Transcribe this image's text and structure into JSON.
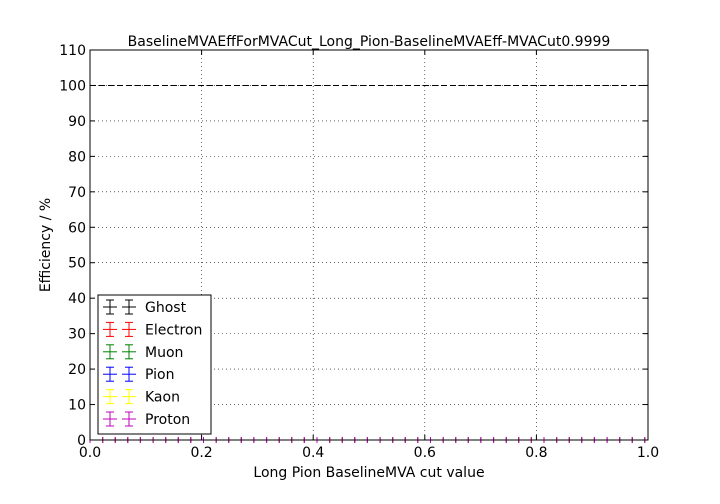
{
  "chart_data": {
    "type": "scatter",
    "title": "BaselineMVAEffForMVACut_Long_Pion-BaselineMVAEff-MVACut0.9999",
    "xlabel": "Long Pion BaselineMVA cut value",
    "ylabel": "Efficiency / %",
    "xlim": [
      0.0,
      1.0
    ],
    "ylim": [
      0,
      110
    ],
    "xticks": [
      "0.0",
      "0.2",
      "0.4",
      "0.6",
      "0.8",
      "1.0"
    ],
    "yticks": [
      "0",
      "10",
      "20",
      "30",
      "40",
      "50",
      "60",
      "70",
      "80",
      "90",
      "100",
      "110"
    ],
    "grid": true,
    "reference_line": {
      "y": 100,
      "style": "dashed"
    },
    "legend_position": "lower-left",
    "x": [
      0.0,
      0.0226,
      0.0452,
      0.0678,
      0.0904,
      0.113,
      0.1356,
      0.1582,
      0.1808,
      0.2034,
      0.226,
      0.2486,
      0.2712,
      0.2938,
      0.3164,
      0.339,
      0.3616,
      0.3842,
      0.4068,
      0.4294,
      0.452,
      0.4746,
      0.4972,
      0.5198,
      0.5424,
      0.565,
      0.5876,
      0.6102,
      0.6328,
      0.6554,
      0.678,
      0.7006,
      0.7232,
      0.7458,
      0.7684,
      0.791,
      0.8136,
      0.8362,
      0.8588,
      0.8814,
      0.904,
      0.9266,
      0.9492,
      0.9718,
      0.9944
    ],
    "series": [
      {
        "name": "Ghost",
        "color": "#000000",
        "values": [
          0,
          0,
          0,
          0,
          0,
          0,
          0,
          0,
          0,
          0,
          0,
          0,
          0,
          0,
          0,
          0,
          0,
          0,
          0,
          0,
          0,
          0,
          0,
          0,
          0,
          0,
          0,
          0,
          0,
          0,
          0,
          0,
          0,
          0,
          0,
          0,
          0,
          0,
          0,
          0,
          0,
          0,
          0,
          0,
          0
        ]
      },
      {
        "name": "Electron",
        "color": "#ff0000",
        "values": [
          0,
          0,
          0,
          0,
          0,
          0,
          0,
          0,
          0,
          0,
          0,
          0,
          0,
          0,
          0,
          0,
          0,
          0,
          0,
          0,
          0,
          0,
          0,
          0,
          0,
          0,
          0,
          0,
          0,
          0,
          0,
          0,
          0,
          0,
          0,
          0,
          0,
          0,
          0,
          0,
          0,
          0,
          0,
          0,
          0
        ]
      },
      {
        "name": "Muon",
        "color": "#008000",
        "values": [
          0,
          0,
          0,
          0,
          0,
          0,
          0,
          0,
          0,
          0,
          0,
          0,
          0,
          0,
          0,
          0,
          0,
          0,
          0,
          0,
          0,
          0,
          0,
          0,
          0,
          0,
          0,
          0,
          0,
          0,
          0,
          0,
          0,
          0,
          0,
          0,
          0,
          0,
          0,
          0,
          0,
          0,
          0,
          0,
          0
        ]
      },
      {
        "name": "Pion",
        "color": "#0000ff",
        "values": [
          0,
          0,
          0,
          0,
          0,
          0,
          0,
          0,
          0,
          0,
          0,
          0,
          0,
          0,
          0,
          0,
          0,
          0,
          0,
          0,
          0,
          0,
          0,
          0,
          0,
          0,
          0,
          0,
          0,
          0,
          0,
          0,
          0,
          0,
          0,
          0,
          0,
          0,
          0,
          0,
          0,
          0,
          0,
          0,
          0
        ]
      },
      {
        "name": "Kaon",
        "color": "#ffff00",
        "values": [
          0,
          0,
          0,
          0,
          0,
          0,
          0,
          0,
          0,
          0,
          0,
          0,
          0,
          0,
          0,
          0,
          0,
          0,
          0,
          0,
          0,
          0,
          0,
          0,
          0,
          0,
          0,
          0,
          0,
          0,
          0,
          0,
          0,
          0,
          0,
          0,
          0,
          0,
          0,
          0,
          0,
          0,
          0,
          0,
          0
        ]
      },
      {
        "name": "Proton",
        "color": "#bf00bf",
        "values": [
          0,
          0,
          0,
          0,
          0,
          0,
          0,
          0,
          0,
          0,
          0,
          0,
          0,
          0,
          0,
          0,
          0,
          0,
          0,
          0,
          0,
          0,
          0,
          0,
          0,
          0,
          0,
          0,
          0,
          0,
          0,
          0,
          0,
          0,
          0,
          0,
          0,
          0,
          0,
          0,
          0,
          0,
          0,
          0,
          0
        ]
      }
    ]
  }
}
